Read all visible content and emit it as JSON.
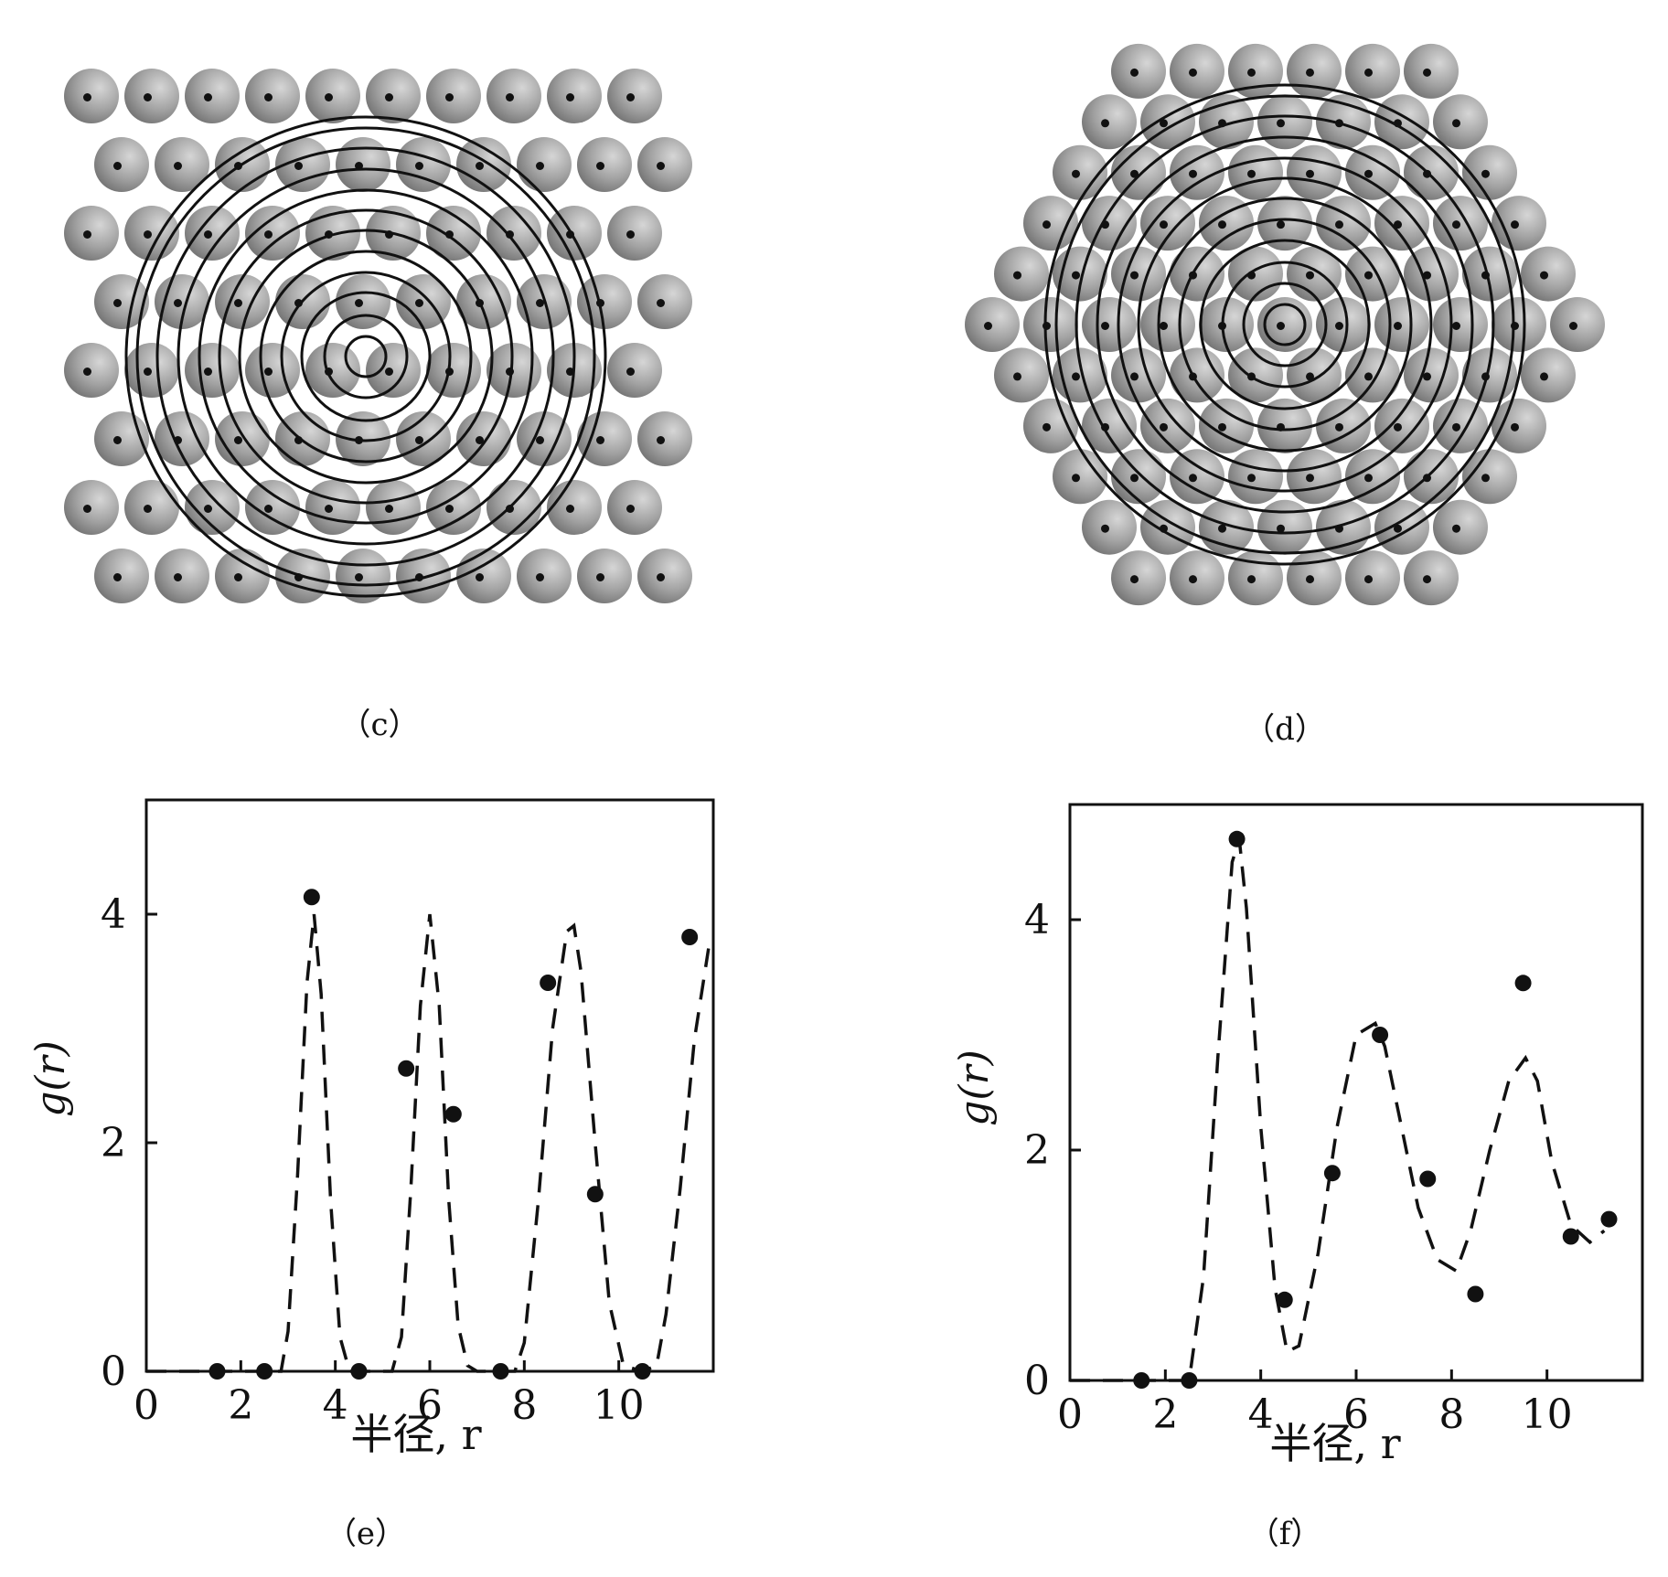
{
  "captions": {
    "c": "（c）",
    "d": "（d）",
    "e": "（e）",
    "f": "（f）"
  },
  "panels": {
    "c": {
      "lattice": "square-packed spheres with concentric shells"
    },
    "d": {
      "lattice": "hexagonal-packed spheres with concentric shells"
    }
  },
  "colors": {
    "ink": "#111111",
    "sphere": "#9a9a9a",
    "sphere_dark": "#6f6f6f"
  },
  "chart_data": [
    {
      "type": "scatter",
      "xlabel": "半径, r",
      "ylabel": "g(r)",
      "xlim": [
        0,
        12
      ],
      "ylim": [
        0,
        5
      ],
      "xticks": [
        "0",
        "2",
        "4",
        "6",
        "8",
        "10"
      ],
      "yticks": [
        "0",
        "2",
        "4"
      ],
      "points": {
        "x": [
          1.5,
          2.5,
          3.5,
          4.5,
          5.5,
          6.5,
          7.5,
          8.5,
          9.5,
          10.5,
          11.5
        ],
        "y": [
          0,
          0,
          4.15,
          0,
          2.65,
          2.25,
          0,
          3.4,
          1.55,
          0,
          3.8
        ]
      },
      "curve": {
        "style": "dashed",
        "x": [
          0,
          2.85,
          3.0,
          3.2,
          3.4,
          3.55,
          3.7,
          3.9,
          4.1,
          4.3,
          5.2,
          5.4,
          5.6,
          5.8,
          6.0,
          6.2,
          6.4,
          6.6,
          6.8,
          7.0,
          7.8,
          8.0,
          8.3,
          8.6,
          8.9,
          9.05,
          9.2,
          9.5,
          9.8,
          10.1,
          10.5,
          10.8,
          11.0,
          11.3,
          11.6,
          11.9
        ],
        "y": [
          0,
          0,
          0.35,
          1.7,
          3.4,
          4.0,
          3.3,
          1.5,
          0.3,
          0,
          0,
          0.3,
          1.6,
          3.2,
          4.0,
          3.2,
          1.5,
          0.4,
          0.05,
          0,
          0,
          0.25,
          1.5,
          3.0,
          3.85,
          3.9,
          3.5,
          2.0,
          0.6,
          0.05,
          0,
          0.05,
          0.5,
          1.6,
          2.9,
          3.7
        ]
      }
    },
    {
      "type": "scatter",
      "xlabel": "半径, r",
      "ylabel": "g(r)",
      "xlim": [
        0,
        12
      ],
      "ylim": [
        0,
        5
      ],
      "xticks": [
        "0",
        "2",
        "4",
        "6",
        "8",
        "10"
      ],
      "yticks": [
        "0",
        "2",
        "4"
      ],
      "points": {
        "x": [
          1.5,
          2.5,
          3.5,
          4.5,
          5.5,
          6.5,
          7.5,
          8.5,
          9.5,
          10.5,
          11.3
        ],
        "y": [
          0,
          0,
          4.7,
          0.7,
          1.8,
          3.0,
          1.75,
          0.75,
          3.45,
          1.25,
          1.4
        ]
      },
      "curve": {
        "style": "dashed",
        "x": [
          0,
          2.5,
          2.8,
          3.1,
          3.4,
          3.55,
          3.7,
          4.0,
          4.3,
          4.55,
          4.8,
          5.2,
          5.6,
          6.0,
          6.4,
          6.6,
          6.9,
          7.3,
          7.7,
          8.1,
          8.4,
          8.8,
          9.2,
          9.55,
          9.8,
          10.1,
          10.5,
          10.9,
          11.2
        ],
        "y": [
          0,
          0,
          0.9,
          2.8,
          4.5,
          4.7,
          4.1,
          2.2,
          0.8,
          0.25,
          0.3,
          1.1,
          2.2,
          3.0,
          3.1,
          2.9,
          2.3,
          1.5,
          1.05,
          0.95,
          1.3,
          2.0,
          2.6,
          2.8,
          2.6,
          1.9,
          1.35,
          1.2,
          1.3
        ]
      }
    }
  ]
}
